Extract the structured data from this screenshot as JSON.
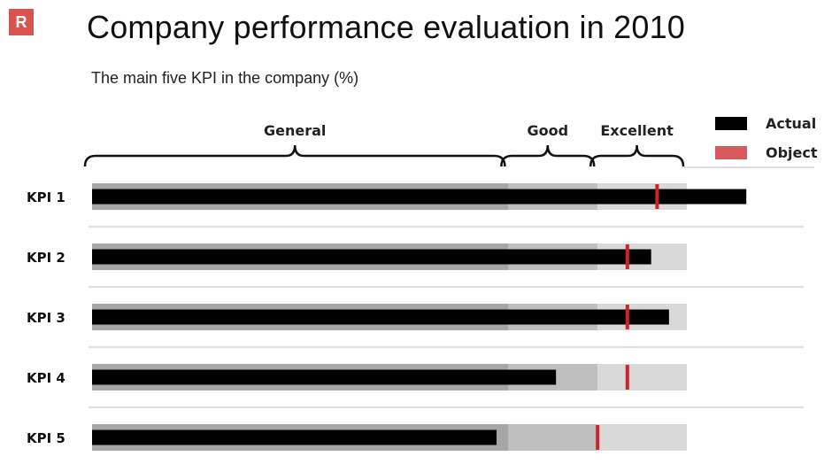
{
  "header": {
    "logo_text": "R",
    "title": "Company performance evaluation in 2010",
    "subtitle": "The main five KPI in the company (%)"
  },
  "colors": {
    "actual": "#000000",
    "object": "#c9262b",
    "band_general": "#a6a6a6",
    "band_good": "#bfbfbf",
    "band_excellent": "#d9d9d9",
    "legend_object": "#d75a5e",
    "separator": "#bfbfbf"
  },
  "chart_data": {
    "type": "bullet",
    "title": "Company performance evaluation in 2010",
    "subtitle": "The main five KPI in the company (%)",
    "xlim": [
      0,
      100
    ],
    "bands": [
      {
        "label": "General",
        "from": 0,
        "to": 70
      },
      {
        "label": "Good",
        "from": 70,
        "to": 85
      },
      {
        "label": "Excellent",
        "from": 85,
        "to": 100
      }
    ],
    "legend": [
      "Actual",
      "Object"
    ],
    "legend_position": "top-right",
    "categories": [
      "KPI 1",
      "KPI 2",
      "KPI 3",
      "KPI 4",
      "KPI 5"
    ],
    "series": [
      {
        "name": "Actual",
        "values": [
          110,
          94,
          97,
          78,
          68
        ]
      },
      {
        "name": "Object",
        "values": [
          95,
          90,
          90,
          90,
          85
        ]
      }
    ]
  }
}
